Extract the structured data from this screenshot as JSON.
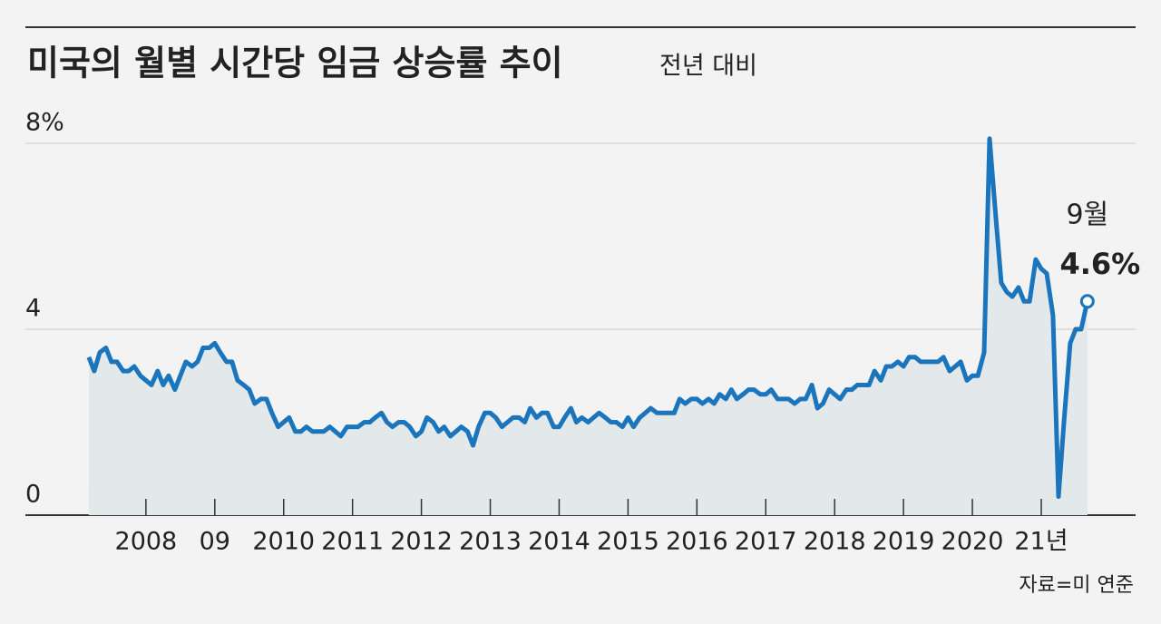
{
  "chart_data": {
    "type": "line",
    "title": "미국의 월별 시간당 임금 상승률 추이",
    "subtitle": "전년 대비",
    "source": "자료=미 연준",
    "x": [
      2007.17,
      2007.25,
      2007.33,
      2007.42,
      2007.5,
      2007.58,
      2007.67,
      2007.75,
      2007.83,
      2007.92,
      2008,
      2008.08,
      2008.17,
      2008.25,
      2008.33,
      2008.42,
      2008.5,
      2008.58,
      2008.67,
      2008.75,
      2008.83,
      2008.92,
      2009,
      2009.08,
      2009.17,
      2009.25,
      2009.33,
      2009.42,
      2009.5,
      2009.58,
      2009.67,
      2009.75,
      2009.83,
      2009.92,
      2010,
      2010.08,
      2010.17,
      2010.25,
      2010.33,
      2010.42,
      2010.5,
      2010.58,
      2010.67,
      2010.75,
      2010.83,
      2010.92,
      2011,
      2011.08,
      2011.17,
      2011.25,
      2011.33,
      2011.42,
      2011.5,
      2011.58,
      2011.67,
      2011.75,
      2011.83,
      2011.92,
      2012,
      2012.08,
      2012.17,
      2012.25,
      2012.33,
      2012.42,
      2012.5,
      2012.58,
      2012.67,
      2012.75,
      2012.83,
      2012.92,
      2013,
      2013.08,
      2013.17,
      2013.25,
      2013.33,
      2013.42,
      2013.5,
      2013.58,
      2013.67,
      2013.75,
      2013.83,
      2013.92,
      2014,
      2014.08,
      2014.17,
      2014.25,
      2014.33,
      2014.42,
      2014.5,
      2014.58,
      2014.67,
      2014.75,
      2014.83,
      2014.92,
      2015,
      2015.08,
      2015.17,
      2015.25,
      2015.33,
      2015.42,
      2015.5,
      2015.58,
      2015.67,
      2015.75,
      2015.83,
      2015.92,
      2016,
      2016.08,
      2016.17,
      2016.25,
      2016.33,
      2016.42,
      2016.5,
      2016.58,
      2016.67,
      2016.75,
      2016.83,
      2016.92,
      2017,
      2017.08,
      2017.17,
      2017.25,
      2017.33,
      2017.42,
      2017.5,
      2017.58,
      2017.67,
      2017.75,
      2017.83,
      2017.92,
      2018,
      2018.08,
      2018.17,
      2018.25,
      2018.33,
      2018.42,
      2018.5,
      2018.58,
      2018.67,
      2018.75,
      2018.83,
      2018.92,
      2019,
      2019.08,
      2019.17,
      2019.25,
      2019.33,
      2019.42,
      2019.5,
      2019.58,
      2019.67,
      2019.75,
      2019.83,
      2019.92,
      2020,
      2020.08,
      2020.17,
      2020.25,
      2020.33,
      2020.42,
      2020.5,
      2020.58,
      2020.67,
      2020.75,
      2020.83,
      2020.92,
      2021,
      2021.08,
      2021.17,
      2021.25,
      2021.33,
      2021.42,
      2021.5,
      2021.58,
      2021.67
    ],
    "series": [
      {
        "color": "#1b75bc",
        "values": [
          3.4,
          3.1,
          3.5,
          3.6,
          3.3,
          3.3,
          3.1,
          3.1,
          3.2,
          3.0,
          2.9,
          2.8,
          3.1,
          2.8,
          3.0,
          2.7,
          3.0,
          3.3,
          3.2,
          3.3,
          3.6,
          3.6,
          3.7,
          3.5,
          3.3,
          3.3,
          2.9,
          2.8,
          2.7,
          2.4,
          2.5,
          2.5,
          2.2,
          1.9,
          2.0,
          2.1,
          1.8,
          1.8,
          1.9,
          1.8,
          1.8,
          1.8,
          1.9,
          1.8,
          1.7,
          1.9,
          1.9,
          1.9,
          2.0,
          2.0,
          2.1,
          2.2,
          2.0,
          1.9,
          2.0,
          2.0,
          1.9,
          1.7,
          1.8,
          2.1,
          2.0,
          1.8,
          1.9,
          1.7,
          1.8,
          1.9,
          1.8,
          1.5,
          1.9,
          2.2,
          2.2,
          2.1,
          1.9,
          2.0,
          2.1,
          2.1,
          2.0,
          2.3,
          2.1,
          2.2,
          2.2,
          1.9,
          1.9,
          2.1,
          2.3,
          2.0,
          2.1,
          2.0,
          2.1,
          2.2,
          2.1,
          2.0,
          2.0,
          1.9,
          2.1,
          1.9,
          2.1,
          2.2,
          2.3,
          2.2,
          2.2,
          2.2,
          2.2,
          2.5,
          2.4,
          2.5,
          2.5,
          2.4,
          2.5,
          2.4,
          2.6,
          2.5,
          2.7,
          2.5,
          2.6,
          2.7,
          2.7,
          2.6,
          2.6,
          2.7,
          2.5,
          2.5,
          2.5,
          2.4,
          2.5,
          2.5,
          2.8,
          2.3,
          2.4,
          2.7,
          2.6,
          2.5,
          2.7,
          2.7,
          2.8,
          2.8,
          2.8,
          3.1,
          2.9,
          3.2,
          3.2,
          3.3,
          3.2,
          3.4,
          3.4,
          3.3,
          3.3,
          3.3,
          3.3,
          3.4,
          3.1,
          3.2,
          3.3,
          2.9,
          3.0,
          3.0,
          3.5,
          8.1,
          6.6,
          5.0,
          4.8,
          4.7,
          4.9,
          4.6,
          4.6,
          5.5,
          5.3,
          5.2,
          4.3,
          0.4,
          2.0,
          3.7,
          4.0,
          4.0,
          4.6
        ]
      }
    ],
    "xlim": [
      2006.25,
      2022.37
    ],
    "xticks": [
      2008,
      {
        "value": 2009,
        "label": "09"
      },
      2010,
      2011,
      2012,
      2013,
      2014,
      2015,
      2016,
      2017,
      2018,
      2019,
      2020,
      {
        "value": 2021,
        "label": "21년"
      }
    ],
    "ylim": [
      0,
      8
    ],
    "yticks": [
      0,
      4,
      {
        "value": 8,
        "label": "8%"
      }
    ],
    "grid": true,
    "annotations": [
      {
        "x": 2021.67,
        "label": "9월"
      },
      {
        "x": 2021.67,
        "value": 4.6,
        "label": "4.6%"
      }
    ]
  }
}
